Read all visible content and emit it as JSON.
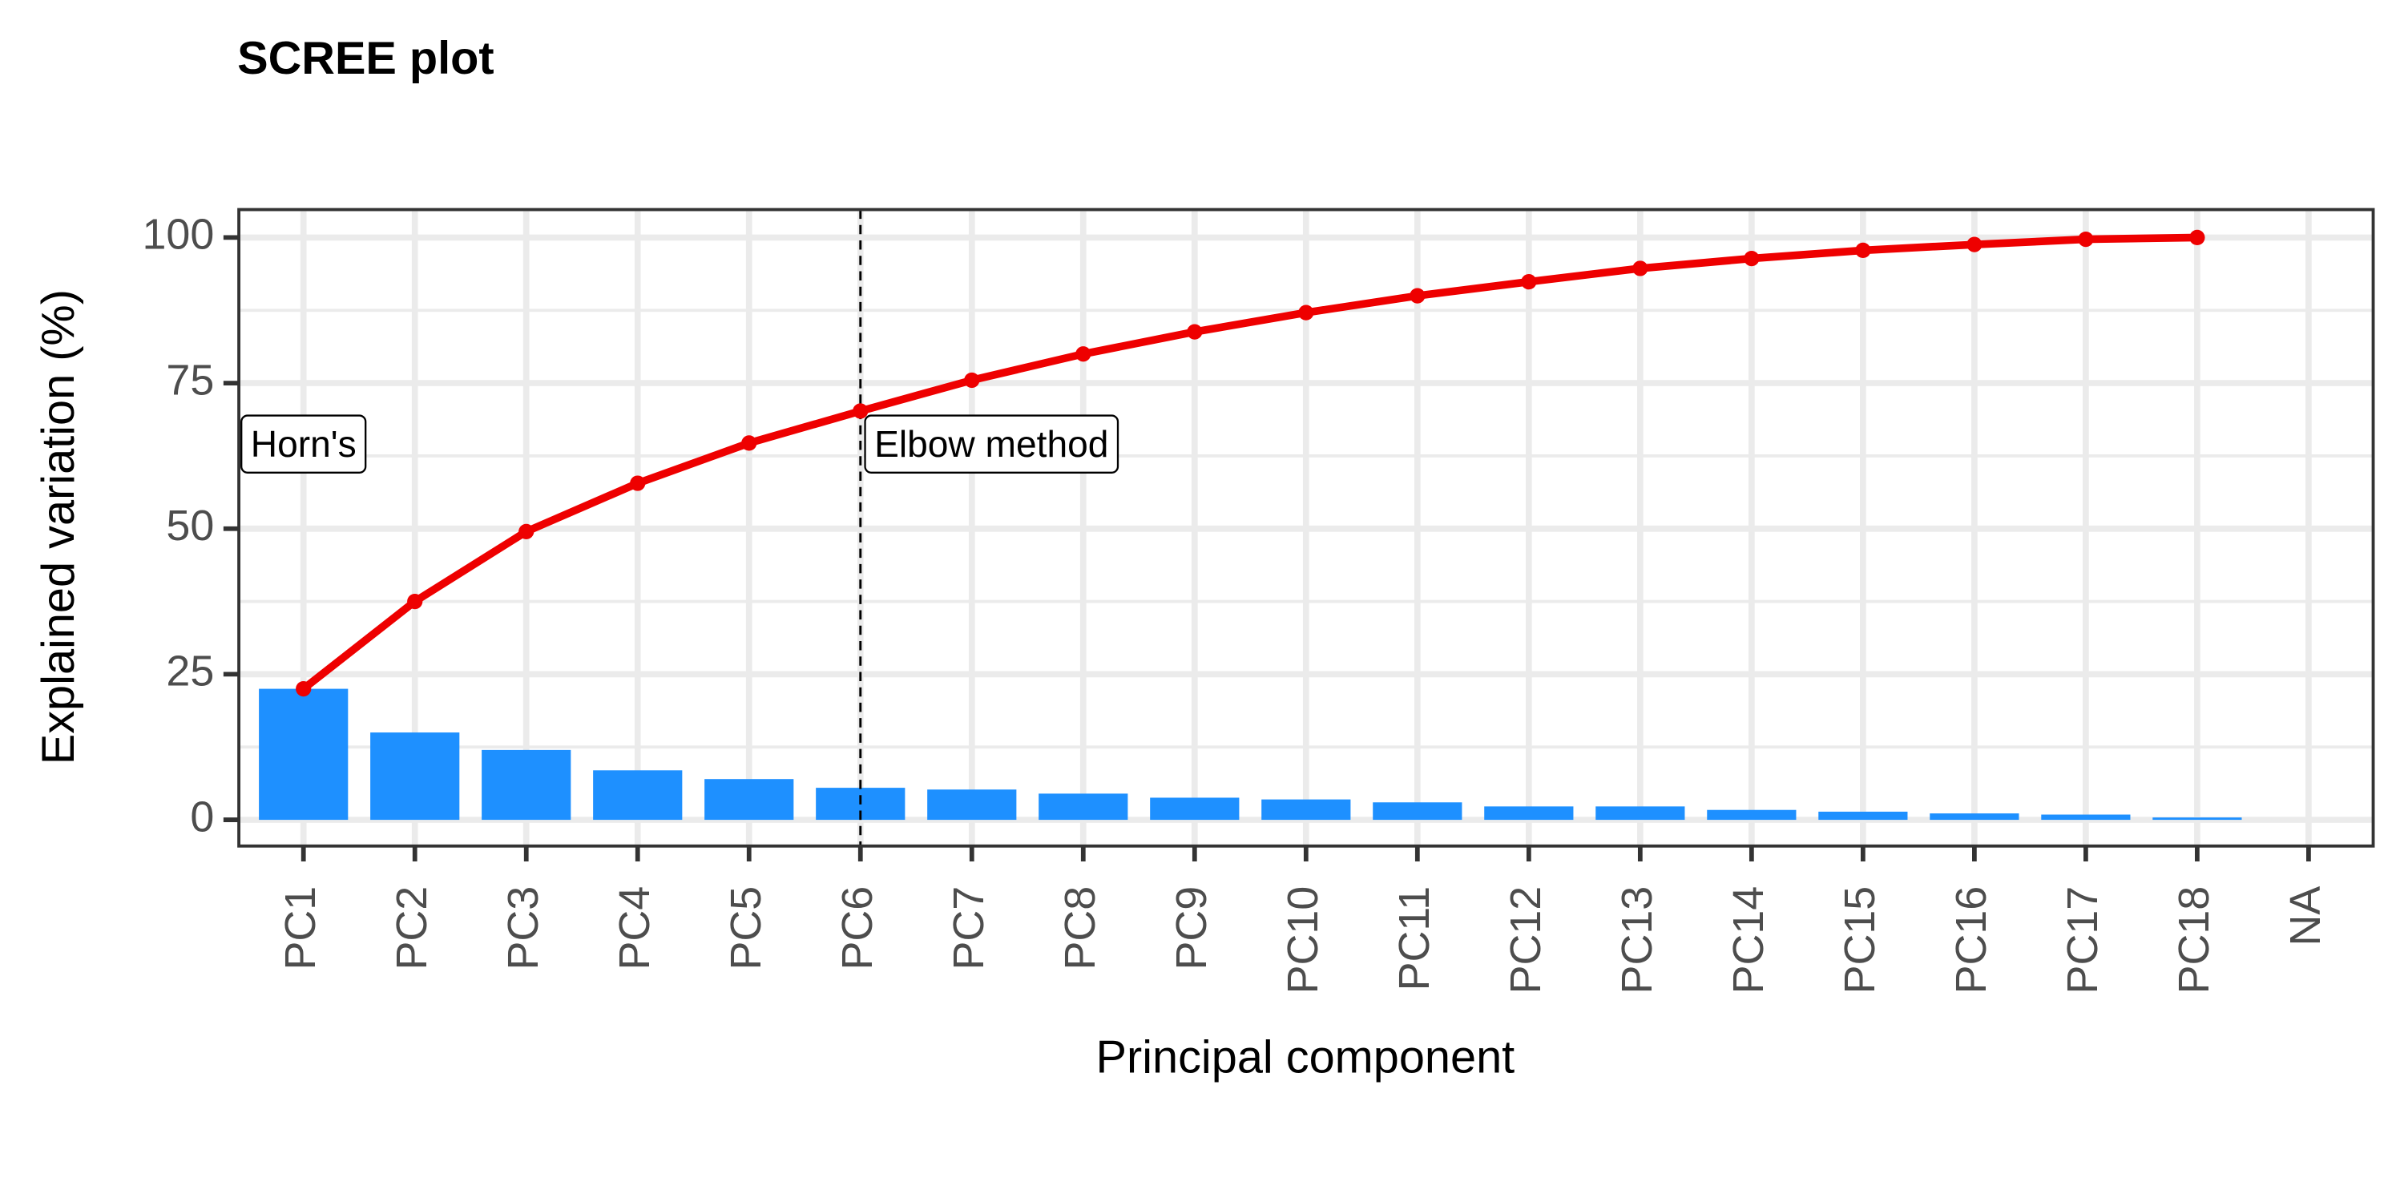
{
  "chart_data": {
    "type": "bar",
    "title": "SCREE plot",
    "x_label": "Principal component",
    "y_label": "Explained variation (%)",
    "categories": [
      "PC1",
      "PC2",
      "PC3",
      "PC4",
      "PC5",
      "PC6",
      "PC7",
      "PC8",
      "PC9",
      "PC10",
      "PC11",
      "PC12",
      "PC13",
      "PC14",
      "PC15",
      "PC16",
      "PC17",
      "PC18",
      "NA"
    ],
    "series": [
      {
        "type": "bar",
        "color": "#1e90ff",
        "values": [
          22.5,
          15,
          12,
          8.5,
          7,
          5.5,
          5.2,
          4.5,
          3.8,
          3.5,
          3,
          2.3,
          2.3,
          1.7,
          1.4,
          1.1,
          0.9,
          0.4,
          null
        ]
      },
      {
        "type": "line",
        "color": "#ee0000",
        "values": [
          22.5,
          37.5,
          49.5,
          57.8,
          64.7,
          70.2,
          75.5,
          80,
          83.8,
          87.1,
          90,
          92.4,
          94.7,
          96.4,
          97.8,
          98.8,
          99.7,
          100,
          null
        ]
      }
    ],
    "ylim": [
      -4.5,
      104.8
    ],
    "yticks": [
      0,
      25,
      50,
      75,
      100
    ],
    "y_minor_ticks": [
      12.5,
      37.5,
      62.5,
      87.5
    ],
    "grid": true,
    "vline": "PC6",
    "annotations": [
      {
        "label": "Horn's",
        "x": "PC1",
        "y": 64,
        "anchor": "middle"
      },
      {
        "label": "Elbow method",
        "x": "PC6",
        "y": 64,
        "anchor": "start"
      }
    ]
  }
}
